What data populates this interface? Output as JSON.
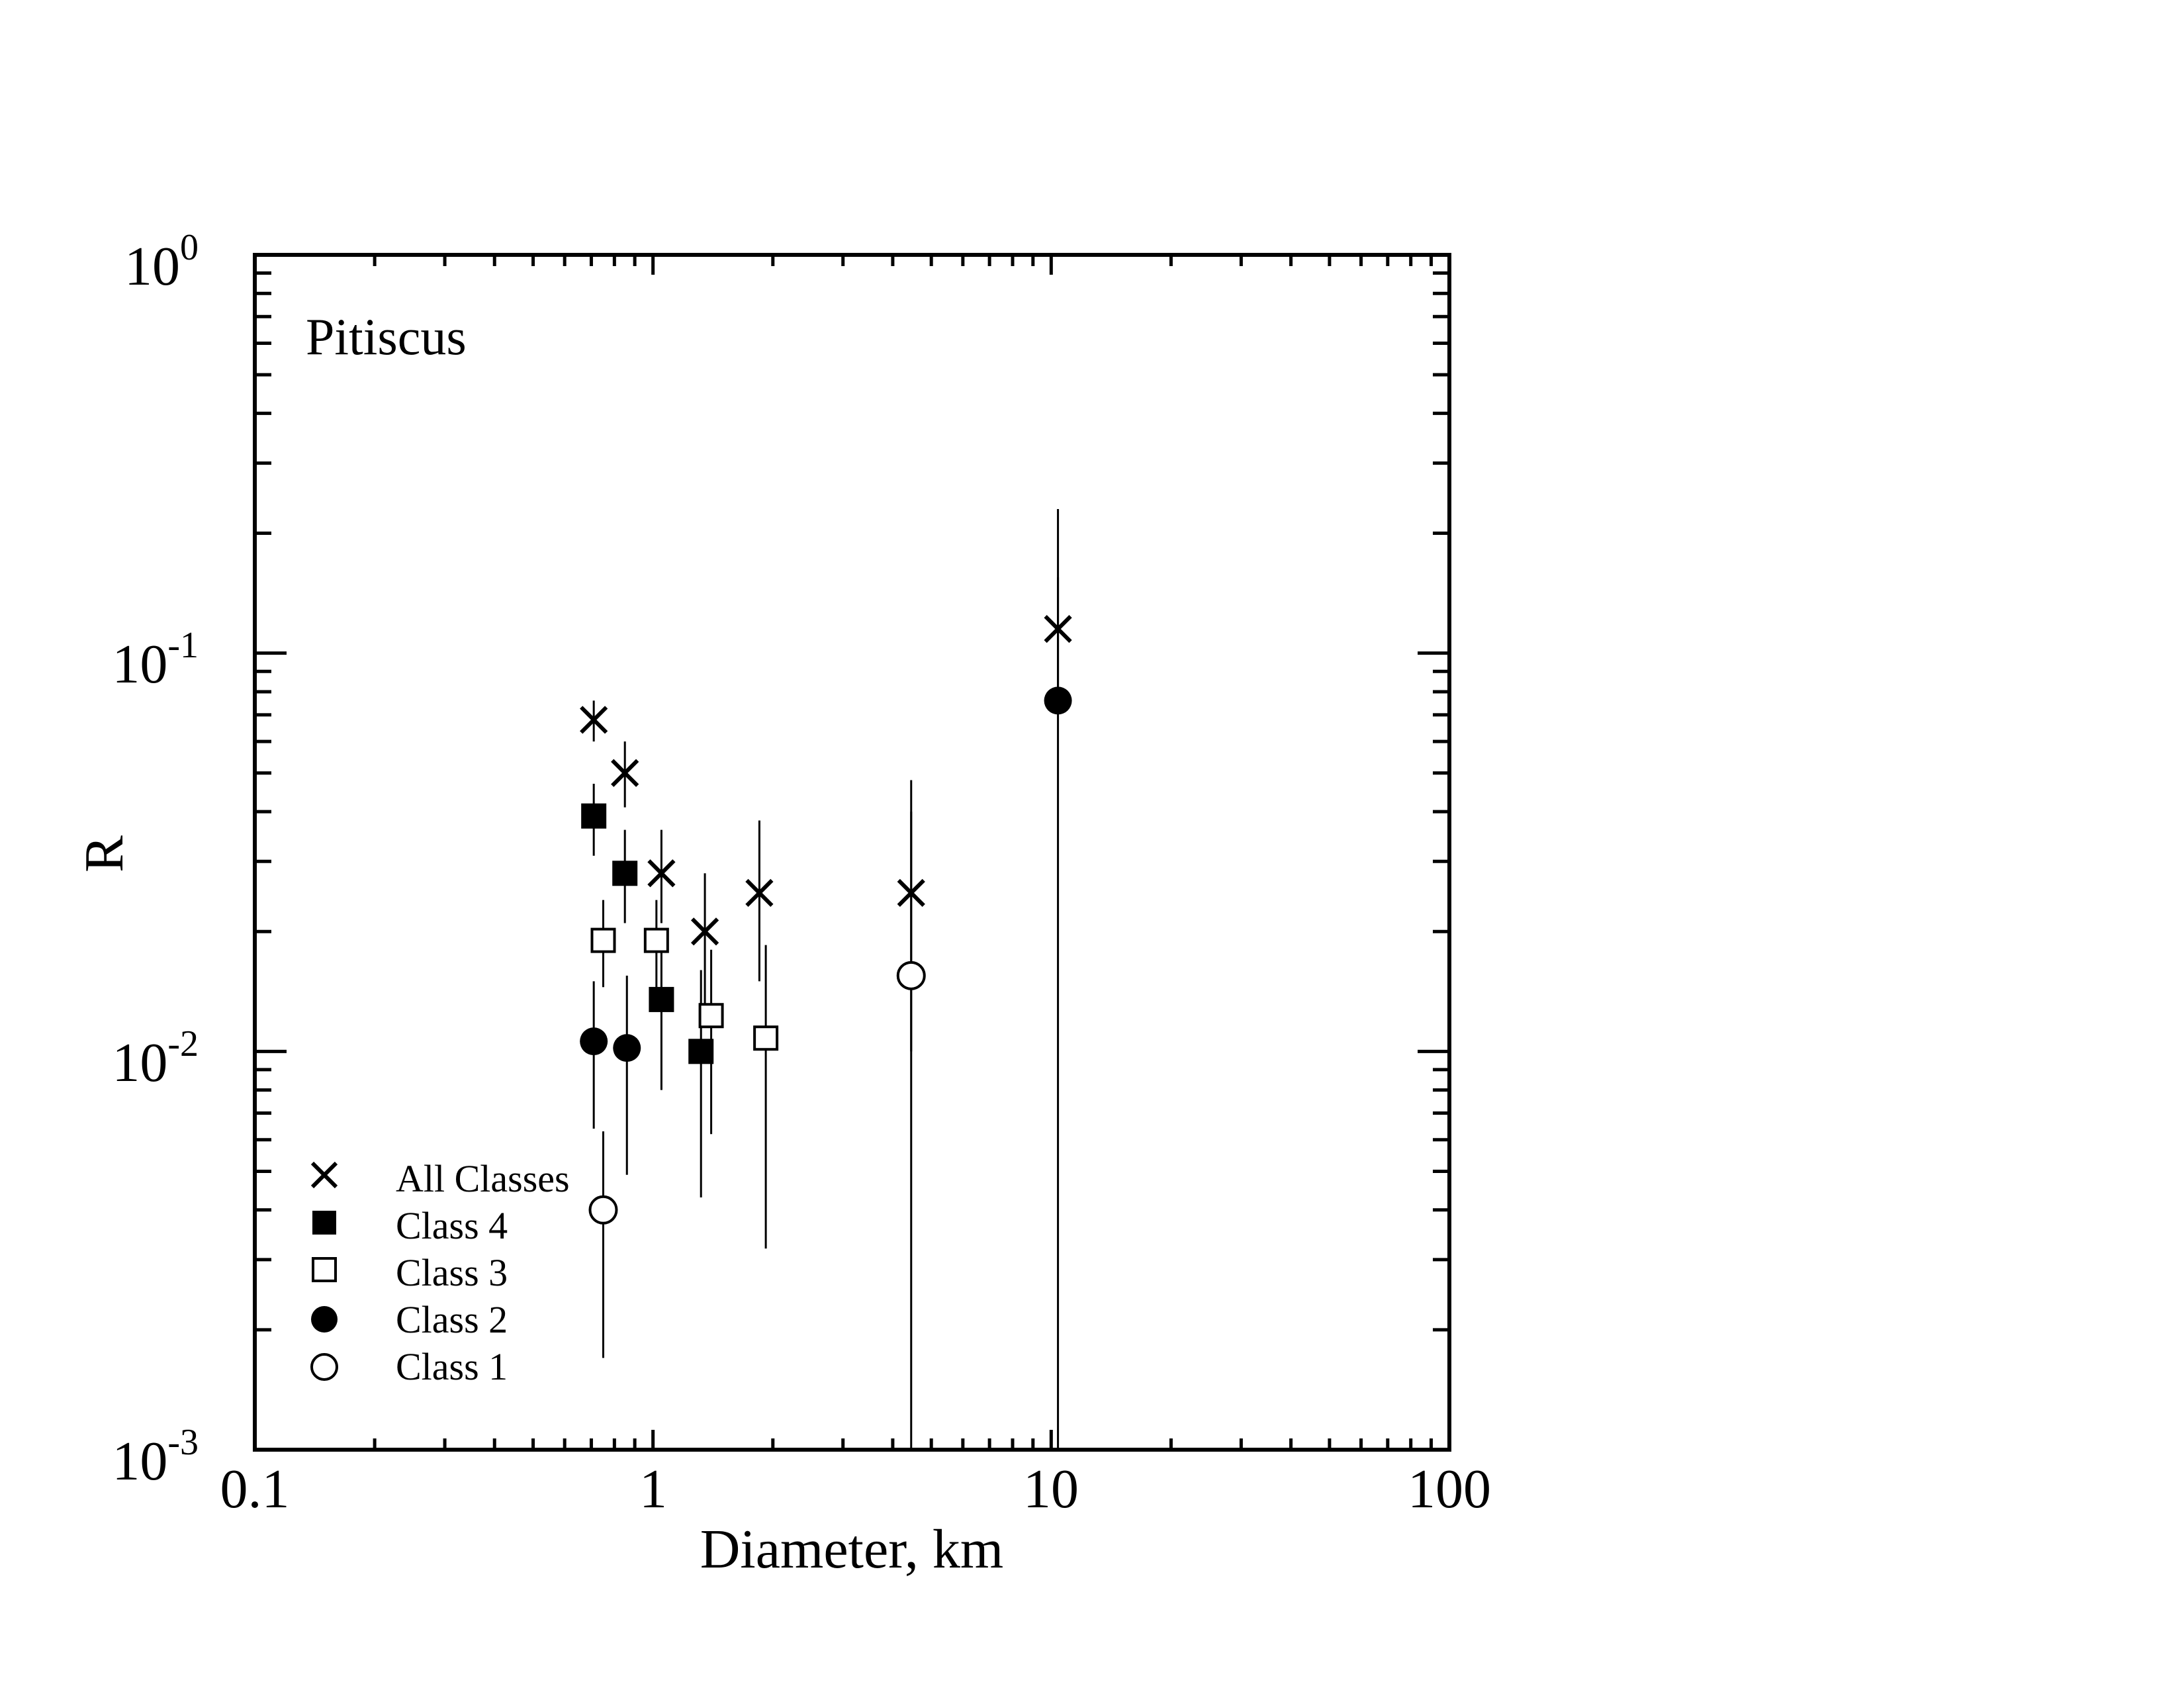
{
  "chart_data": {
    "type": "scatter",
    "title": "Pitiscus",
    "xlabel": "Diameter, km",
    "ylabel": "R",
    "xscale": "log",
    "yscale": "log",
    "xlim": [
      0.1,
      100
    ],
    "ylim": [
      0.001,
      1
    ],
    "x_tick_labels": [
      "0.1",
      "1",
      "10",
      "100"
    ],
    "y_tick_labels": [
      {
        "base": "10",
        "exp": "0"
      },
      {
        "base": "10",
        "exp": "-1"
      },
      {
        "base": "10",
        "exp": "-2"
      },
      {
        "base": "10",
        "exp": "-3"
      }
    ],
    "grid": false,
    "legend_position": "bottom-left",
    "series": [
      {
        "name": "All Classes",
        "marker": "cross",
        "points": [
          {
            "x": 0.71,
            "y": 0.068,
            "ylo": 0.06,
            "yhi": 0.076
          },
          {
            "x": 0.85,
            "y": 0.05,
            "ylo": 0.041,
            "yhi": 0.06
          },
          {
            "x": 1.05,
            "y": 0.028,
            "ylo": 0.021,
            "yhi": 0.036
          },
          {
            "x": 1.35,
            "y": 0.02,
            "ylo": 0.013,
            "yhi": 0.028
          },
          {
            "x": 1.85,
            "y": 0.025,
            "ylo": 0.015,
            "yhi": 0.038
          },
          {
            "x": 4.45,
            "y": 0.025,
            "ylo": 0.01,
            "yhi": 0.04
          },
          {
            "x": 10.4,
            "y": 0.115,
            "ylo": 0.075,
            "yhi": 0.155
          }
        ]
      },
      {
        "name": "Class 4",
        "marker": "filled-square",
        "points": [
          {
            "x": 0.71,
            "y": 0.039,
            "ylo": 0.031,
            "yhi": 0.047
          },
          {
            "x": 0.85,
            "y": 0.028,
            "ylo": 0.021,
            "yhi": 0.036
          },
          {
            "x": 1.05,
            "y": 0.0135,
            "ylo": 0.008,
            "yhi": 0.019
          },
          {
            "x": 1.32,
            "y": 0.01,
            "ylo": 0.0043,
            "yhi": 0.016
          }
        ]
      },
      {
        "name": "Class 3",
        "marker": "open-square",
        "points": [
          {
            "x": 0.75,
            "y": 0.019,
            "ylo": 0.0145,
            "yhi": 0.024
          },
          {
            "x": 1.02,
            "y": 0.019,
            "ylo": 0.0145,
            "yhi": 0.024
          },
          {
            "x": 1.4,
            "y": 0.0123,
            "ylo": 0.0062,
            "yhi": 0.018
          },
          {
            "x": 1.92,
            "y": 0.0108,
            "ylo": 0.0032,
            "yhi": 0.0185
          }
        ]
      },
      {
        "name": "Class 2",
        "marker": "filled-circle",
        "points": [
          {
            "x": 0.71,
            "y": 0.0106,
            "ylo": 0.0064,
            "yhi": 0.015
          },
          {
            "x": 0.86,
            "y": 0.0102,
            "ylo": 0.0049,
            "yhi": 0.0155
          },
          {
            "x": 10.4,
            "y": 0.076,
            "ylo": 0.001,
            "yhi": 0.23
          }
        ]
      },
      {
        "name": "Class 1",
        "marker": "open-circle",
        "points": [
          {
            "x": 0.75,
            "y": 0.004,
            "ylo": 0.0017,
            "yhi": 0.0063
          },
          {
            "x": 4.45,
            "y": 0.0155,
            "ylo": 0.001,
            "yhi": 0.048
          }
        ]
      }
    ]
  }
}
